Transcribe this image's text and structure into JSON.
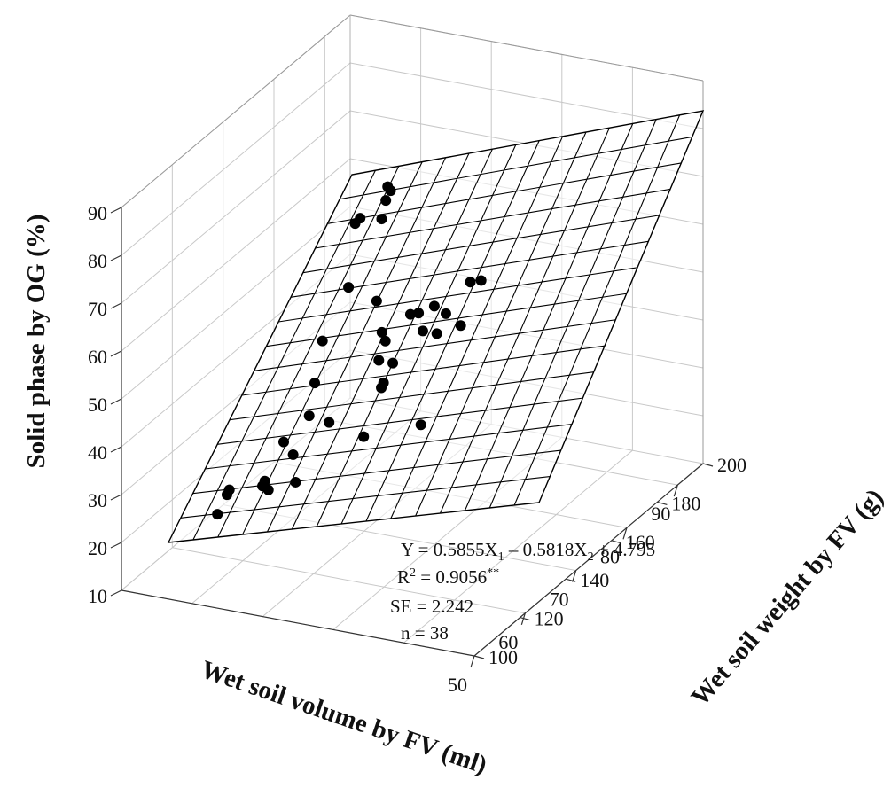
{
  "chart_data": {
    "type": "scatter",
    "subtype": "3d-scatter-with-fitted-plane",
    "title": "",
    "x_axis": {
      "label": "Wet soil volume by FV (ml)",
      "range": [
        50,
        95
      ],
      "ticks": [
        50,
        60,
        70,
        80,
        90
      ]
    },
    "y_axis": {
      "label": "Wet soil weight by FV (g)",
      "range": [
        100,
        200
      ],
      "ticks": [
        100,
        120,
        140,
        160,
        180,
        200
      ]
    },
    "z_axis": {
      "label": "Solid phase by OG (%)",
      "range": [
        10,
        90
      ],
      "ticks": [
        10,
        20,
        30,
        40,
        50,
        60,
        70,
        80,
        90
      ]
    },
    "grid": true,
    "surface": {
      "equation": "Y = 0.5855X1 − 0.5818X2 + 4.795",
      "coef_x1": 0.5855,
      "coef_x2": -0.5818,
      "intercept": 4.795,
      "grid_divisions": 15
    },
    "annotations": {
      "equation_prefix": "Y = 0.5855X",
      "equation_sub1": "1",
      "equation_middle": " – 0.5818X",
      "equation_sub2": "2",
      "equation_suffix": " + 4.795",
      "r2_prefix": "R",
      "r2_sup": "2",
      "r2_value": " = 0.9056",
      "r2_stars": "**",
      "se": "SE = 2.242",
      "n": "n = 38"
    },
    "points": [
      {
        "x": 64,
        "y": 100,
        "z": 15
      },
      {
        "x": 61,
        "y": 100,
        "z": 19
      },
      {
        "x": 60,
        "y": 100,
        "z": 20
      },
      {
        "x": 63,
        "y": 112,
        "z": 21
      },
      {
        "x": 62,
        "y": 112,
        "z": 20
      },
      {
        "x": 63,
        "y": 118,
        "z": 26
      },
      {
        "x": 59,
        "y": 115,
        "z": 19
      },
      {
        "x": 65,
        "y": 112,
        "z": 29
      },
      {
        "x": 58,
        "y": 124,
        "z": 20
      },
      {
        "x": 66,
        "y": 126,
        "z": 32
      },
      {
        "x": 66,
        "y": 117,
        "z": 34
      },
      {
        "x": 59,
        "y": 140,
        "z": 38
      },
      {
        "x": 72,
        "y": 113,
        "z": 41
      },
      {
        "x": 60,
        "y": 140,
        "z": 39
      },
      {
        "x": 57,
        "y": 142,
        "z": 28
      },
      {
        "x": 73,
        "y": 108,
        "z": 50
      },
      {
        "x": 53,
        "y": 162,
        "z": 29
      },
      {
        "x": 71,
        "y": 133,
        "z": 48
      },
      {
        "x": 66,
        "y": 134,
        "z": 44
      },
      {
        "x": 65,
        "y": 140,
        "z": 43
      },
      {
        "x": 64,
        "y": 152,
        "z": 48
      },
      {
        "x": 70,
        "y": 130,
        "z": 50
      },
      {
        "x": 71,
        "y": 138,
        "z": 53
      },
      {
        "x": 68,
        "y": 141,
        "z": 53
      },
      {
        "x": 68,
        "y": 146,
        "z": 54
      },
      {
        "x": 65,
        "y": 146,
        "z": 49
      },
      {
        "x": 62,
        "y": 152,
        "z": 52
      },
      {
        "x": 58,
        "y": 156,
        "z": 58
      },
      {
        "x": 62,
        "y": 160,
        "z": 49
      },
      {
        "x": 61,
        "y": 160,
        "z": 58
      },
      {
        "x": 90,
        "y": 108,
        "z": 61
      },
      {
        "x": 80,
        "y": 122,
        "z": 57
      },
      {
        "x": 88,
        "y": 108,
        "z": 75
      },
      {
        "x": 91,
        "y": 98,
        "z": 75
      },
      {
        "x": 89,
        "y": 99,
        "z": 76
      },
      {
        "x": 87,
        "y": 106,
        "z": 79
      },
      {
        "x": 86,
        "y": 104,
        "z": 82
      },
      {
        "x": 84,
        "y": 106,
        "z": 81
      }
    ]
  }
}
